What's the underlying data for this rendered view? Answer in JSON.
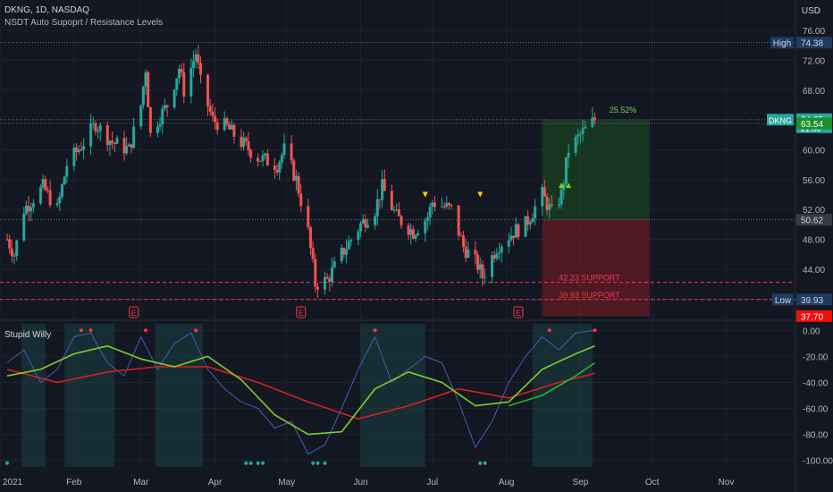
{
  "header": {
    "symbol_line": "DKNG, 1D, NASDAQ",
    "indicator_name": "NSDT Auto Supoprt / Resistance Levels",
    "currency": "USD"
  },
  "oscillator": {
    "name": "Stupid Willy"
  },
  "colors": {
    "background": "#131722",
    "up": "#26a69a",
    "down": "#ef5350",
    "profit_zone": "#1b5e20",
    "loss_zone": "#8b1c25",
    "support_line": "#f23645",
    "osc_blue": "#3f5fb0",
    "osc_green": "#7ccf2a",
    "osc_red": "#d61f1f",
    "osc_green2": "#2bb52b"
  },
  "chart_data": {
    "type": "candlestick",
    "title": "DKNG, 1D, NASDAQ",
    "x_ticks": [
      "2021",
      "Feb",
      "Mar",
      "Apr",
      "May",
      "Jun",
      "Jul",
      "Aug",
      "Sep",
      "Oct",
      "Nov"
    ],
    "y_ticks": [
      44,
      48,
      52,
      56,
      60,
      68,
      72,
      76
    ],
    "y_unit": "USD",
    "ylim": [
      37.5,
      76.5
    ],
    "price_path": [
      [
        "2021-01-04",
        48.0
      ],
      [
        "2021-01-07",
        46.0
      ],
      [
        "2021-01-11",
        52.0
      ],
      [
        "2021-01-19",
        55.0
      ],
      [
        "2021-01-25",
        52.0
      ],
      [
        "2021-01-29",
        58.0
      ],
      [
        "2021-02-05",
        61.0
      ],
      [
        "2021-02-10",
        63.5
      ],
      [
        "2021-02-17",
        61.0
      ],
      [
        "2021-02-24",
        60.0
      ],
      [
        "2021-03-01",
        66.0
      ],
      [
        "2021-03-03",
        71.0
      ],
      [
        "2021-03-05",
        62.0
      ],
      [
        "2021-03-08",
        64.0
      ],
      [
        "2021-03-12",
        66.0
      ],
      [
        "2021-03-17",
        71.0
      ],
      [
        "2021-03-19",
        68.0
      ],
      [
        "2021-03-24",
        73.0
      ],
      [
        "2021-03-26",
        69.0
      ],
      [
        "2021-03-31",
        64.0
      ],
      [
        "2021-04-06",
        63.0
      ],
      [
        "2021-04-12",
        61.0
      ],
      [
        "2021-04-19",
        59.0
      ],
      [
        "2021-04-27",
        58.0
      ],
      [
        "2021-04-30",
        60.0
      ],
      [
        "2021-05-05",
        56.0
      ],
      [
        "2021-05-10",
        49.0
      ],
      [
        "2021-05-13",
        42.0
      ],
      [
        "2021-05-18",
        42.5
      ],
      [
        "2021-05-24",
        46.0
      ],
      [
        "2021-06-01",
        50.0
      ],
      [
        "2021-06-07",
        52.0
      ],
      [
        "2021-06-10",
        55.0
      ],
      [
        "2021-06-16",
        51.0
      ],
      [
        "2021-06-23",
        49.0
      ],
      [
        "2021-06-29",
        51.0
      ],
      [
        "2021-07-01",
        53.0
      ],
      [
        "2021-07-09",
        52.0
      ],
      [
        "2021-07-14",
        47.0
      ],
      [
        "2021-07-20",
        44.5
      ],
      [
        "2021-07-22",
        43.0
      ],
      [
        "2021-07-28",
        47.0
      ],
      [
        "2021-08-04",
        49.0
      ],
      [
        "2021-08-09",
        50.0
      ],
      [
        "2021-08-16",
        54.0
      ],
      [
        "2021-08-20",
        51.5
      ],
      [
        "2021-08-24",
        54.0
      ],
      [
        "2021-08-27",
        60.0
      ],
      [
        "2021-09-01",
        62.0
      ],
      [
        "2021-09-07",
        64.05
      ]
    ],
    "price_labels": {
      "last": "64.05",
      "last_sub": "21:06",
      "entry": "63.54",
      "high": "74.38",
      "high_label": "High",
      "low": "39.93",
      "low_label": "Low",
      "stop_target": "50.62",
      "bottom": "37.70",
      "symbol_tag": "DKNG"
    },
    "zones": {
      "profit": {
        "from": "2021-08-16",
        "to": "2021-09-30",
        "top": 64.05,
        "bottom": 50.62
      },
      "loss": {
        "from": "2021-08-16",
        "to": "2021-09-30",
        "top": 50.62,
        "bottom": 37.7
      },
      "pct_label": "25.52%"
    },
    "levels": [
      {
        "value": 42.23,
        "label": "42.23 SUPPORT"
      },
      {
        "value": 39.93,
        "label": "39.93 SUPPORT"
      }
    ],
    "earnings_markers": {
      "label": "E",
      "dates": [
        "2021-02-26",
        "2021-05-07",
        "2021-08-06"
      ]
    },
    "signal_markers": {
      "up": [
        "2021-08-24",
        "2021-08-27"
      ],
      "down": [
        "2021-06-28",
        "2021-07-21"
      ]
    },
    "oscillator": {
      "name": "Stupid Willy",
      "y_ticks": [
        "0.00",
        "-20.00",
        "-40.00",
        "-60.00",
        "-80.00",
        "-100.00"
      ],
      "ylim": [
        -105,
        5
      ],
      "raw": [
        [
          "2021-01-04",
          -25
        ],
        [
          "2021-01-11",
          -15
        ],
        [
          "2021-01-18",
          -40
        ],
        [
          "2021-01-25",
          -30
        ],
        [
          "2021-02-01",
          -5
        ],
        [
          "2021-02-08",
          -2
        ],
        [
          "2021-02-15",
          -25
        ],
        [
          "2021-02-22",
          -35
        ],
        [
          "2021-03-01",
          -5
        ],
        [
          "2021-03-08",
          -30
        ],
        [
          "2021-03-15",
          -10
        ],
        [
          "2021-03-22",
          -2
        ],
        [
          "2021-03-29",
          -30
        ],
        [
          "2021-04-05",
          -45
        ],
        [
          "2021-04-12",
          -55
        ],
        [
          "2021-04-19",
          -60
        ],
        [
          "2021-04-26",
          -75
        ],
        [
          "2021-05-03",
          -70
        ],
        [
          "2021-05-10",
          -95
        ],
        [
          "2021-05-17",
          -88
        ],
        [
          "2021-05-24",
          -60
        ],
        [
          "2021-05-31",
          -30
        ],
        [
          "2021-06-07",
          -5
        ],
        [
          "2021-06-14",
          -40
        ],
        [
          "2021-06-21",
          -30
        ],
        [
          "2021-06-28",
          -20
        ],
        [
          "2021-07-05",
          -25
        ],
        [
          "2021-07-12",
          -55
        ],
        [
          "2021-07-19",
          -90
        ],
        [
          "2021-07-26",
          -70
        ],
        [
          "2021-08-02",
          -40
        ],
        [
          "2021-08-09",
          -20
        ],
        [
          "2021-08-16",
          -5
        ],
        [
          "2021-08-23",
          -15
        ],
        [
          "2021-08-30",
          -2
        ],
        [
          "2021-09-07",
          0
        ]
      ],
      "fast": [
        [
          "2021-01-04",
          -35
        ],
        [
          "2021-01-18",
          -30
        ],
        [
          "2021-02-01",
          -18
        ],
        [
          "2021-02-15",
          -12
        ],
        [
          "2021-03-01",
          -22
        ],
        [
          "2021-03-15",
          -28
        ],
        [
          "2021-03-29",
          -20
        ],
        [
          "2021-04-12",
          -38
        ],
        [
          "2021-04-26",
          -65
        ],
        [
          "2021-05-10",
          -80
        ],
        [
          "2021-05-24",
          -78
        ],
        [
          "2021-06-07",
          -45
        ],
        [
          "2021-06-21",
          -32
        ],
        [
          "2021-07-05",
          -40
        ],
        [
          "2021-07-19",
          -58
        ],
        [
          "2021-08-02",
          -55
        ],
        [
          "2021-08-16",
          -30
        ],
        [
          "2021-08-30",
          -18
        ],
        [
          "2021-09-07",
          -12
        ]
      ],
      "slow": [
        [
          "2021-01-04",
          -30
        ],
        [
          "2021-01-25",
          -40
        ],
        [
          "2021-02-15",
          -32
        ],
        [
          "2021-03-08",
          -28
        ],
        [
          "2021-03-29",
          -28
        ],
        [
          "2021-04-19",
          -40
        ],
        [
          "2021-05-10",
          -55
        ],
        [
          "2021-05-31",
          -68
        ],
        [
          "2021-06-21",
          -58
        ],
        [
          "2021-07-12",
          -45
        ],
        [
          "2021-08-02",
          -52
        ],
        [
          "2021-08-23",
          -40
        ],
        [
          "2021-09-07",
          -33
        ]
      ],
      "slow2": [
        [
          "2021-08-02",
          -58
        ],
        [
          "2021-08-16",
          -50
        ],
        [
          "2021-08-30",
          -35
        ],
        [
          "2021-09-07",
          -25
        ]
      ]
    }
  }
}
